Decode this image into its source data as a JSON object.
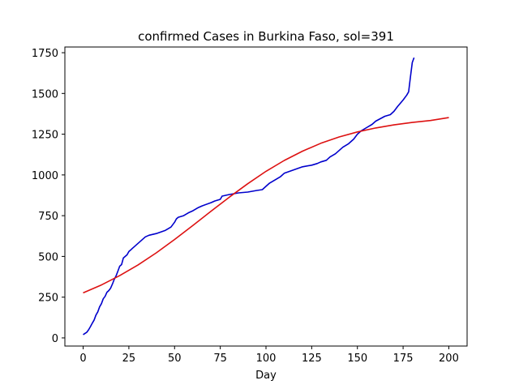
{
  "chart_data": {
    "type": "line",
    "title": "confirmed Cases in Burkina Faso, sol=391",
    "xlabel": "Day",
    "ylabel": "",
    "xlim": [
      -10,
      210
    ],
    "ylim": [
      -50,
      1785
    ],
    "grid": false,
    "x_ticks": [
      0,
      25,
      50,
      75,
      100,
      125,
      150,
      175,
      200
    ],
    "y_ticks": [
      0,
      250,
      500,
      750,
      1000,
      1250,
      1500,
      1750
    ],
    "series": [
      {
        "color": "#0000cc",
        "x": [
          0,
          2,
          3,
          4,
          5,
          6,
          7,
          8,
          9,
          10,
          11,
          12,
          13,
          14,
          15,
          16,
          17,
          18,
          19,
          20,
          21,
          22,
          23,
          24,
          25,
          26,
          27,
          28,
          30,
          32,
          34,
          36,
          40,
          45,
          48,
          50,
          51,
          52,
          55,
          58,
          60,
          63,
          65,
          70,
          72,
          75,
          76,
          80,
          85,
          90,
          95,
          98,
          100,
          102,
          105,
          108,
          110,
          115,
          120,
          125,
          128,
          130,
          133,
          135,
          138,
          140,
          142,
          145,
          148,
          150,
          152,
          155,
          158,
          160,
          165,
          168,
          170,
          172,
          175,
          177,
          178,
          179,
          180,
          181
        ],
        "y": [
          20,
          35,
          50,
          70,
          90,
          110,
          140,
          160,
          190,
          210,
          240,
          255,
          280,
          290,
          305,
          330,
          360,
          380,
          410,
          440,
          450,
          490,
          500,
          510,
          530,
          540,
          550,
          560,
          580,
          600,
          620,
          630,
          640,
          660,
          680,
          710,
          730,
          740,
          750,
          770,
          780,
          800,
          810,
          830,
          840,
          850,
          870,
          880,
          890,
          895,
          905,
          910,
          930,
          950,
          970,
          990,
          1010,
          1030,
          1050,
          1060,
          1070,
          1080,
          1090,
          1110,
          1130,
          1150,
          1170,
          1190,
          1220,
          1250,
          1270,
          1290,
          1310,
          1330,
          1360,
          1370,
          1390,
          1420,
          1460,
          1490,
          1510,
          1600,
          1690,
          1720
        ]
      },
      {
        "color": "#dd1111",
        "x": [
          0,
          10,
          20,
          30,
          40,
          50,
          60,
          70,
          80,
          90,
          100,
          110,
          120,
          130,
          140,
          150,
          160,
          170,
          180,
          190,
          200
        ],
        "y": [
          276,
          325,
          382,
          448,
          522,
          604,
          690,
          778,
          864,
          946,
          1022,
          1089,
          1146,
          1194,
          1233,
          1264,
          1288,
          1307,
          1322,
          1334,
          1352
        ]
      }
    ]
  }
}
